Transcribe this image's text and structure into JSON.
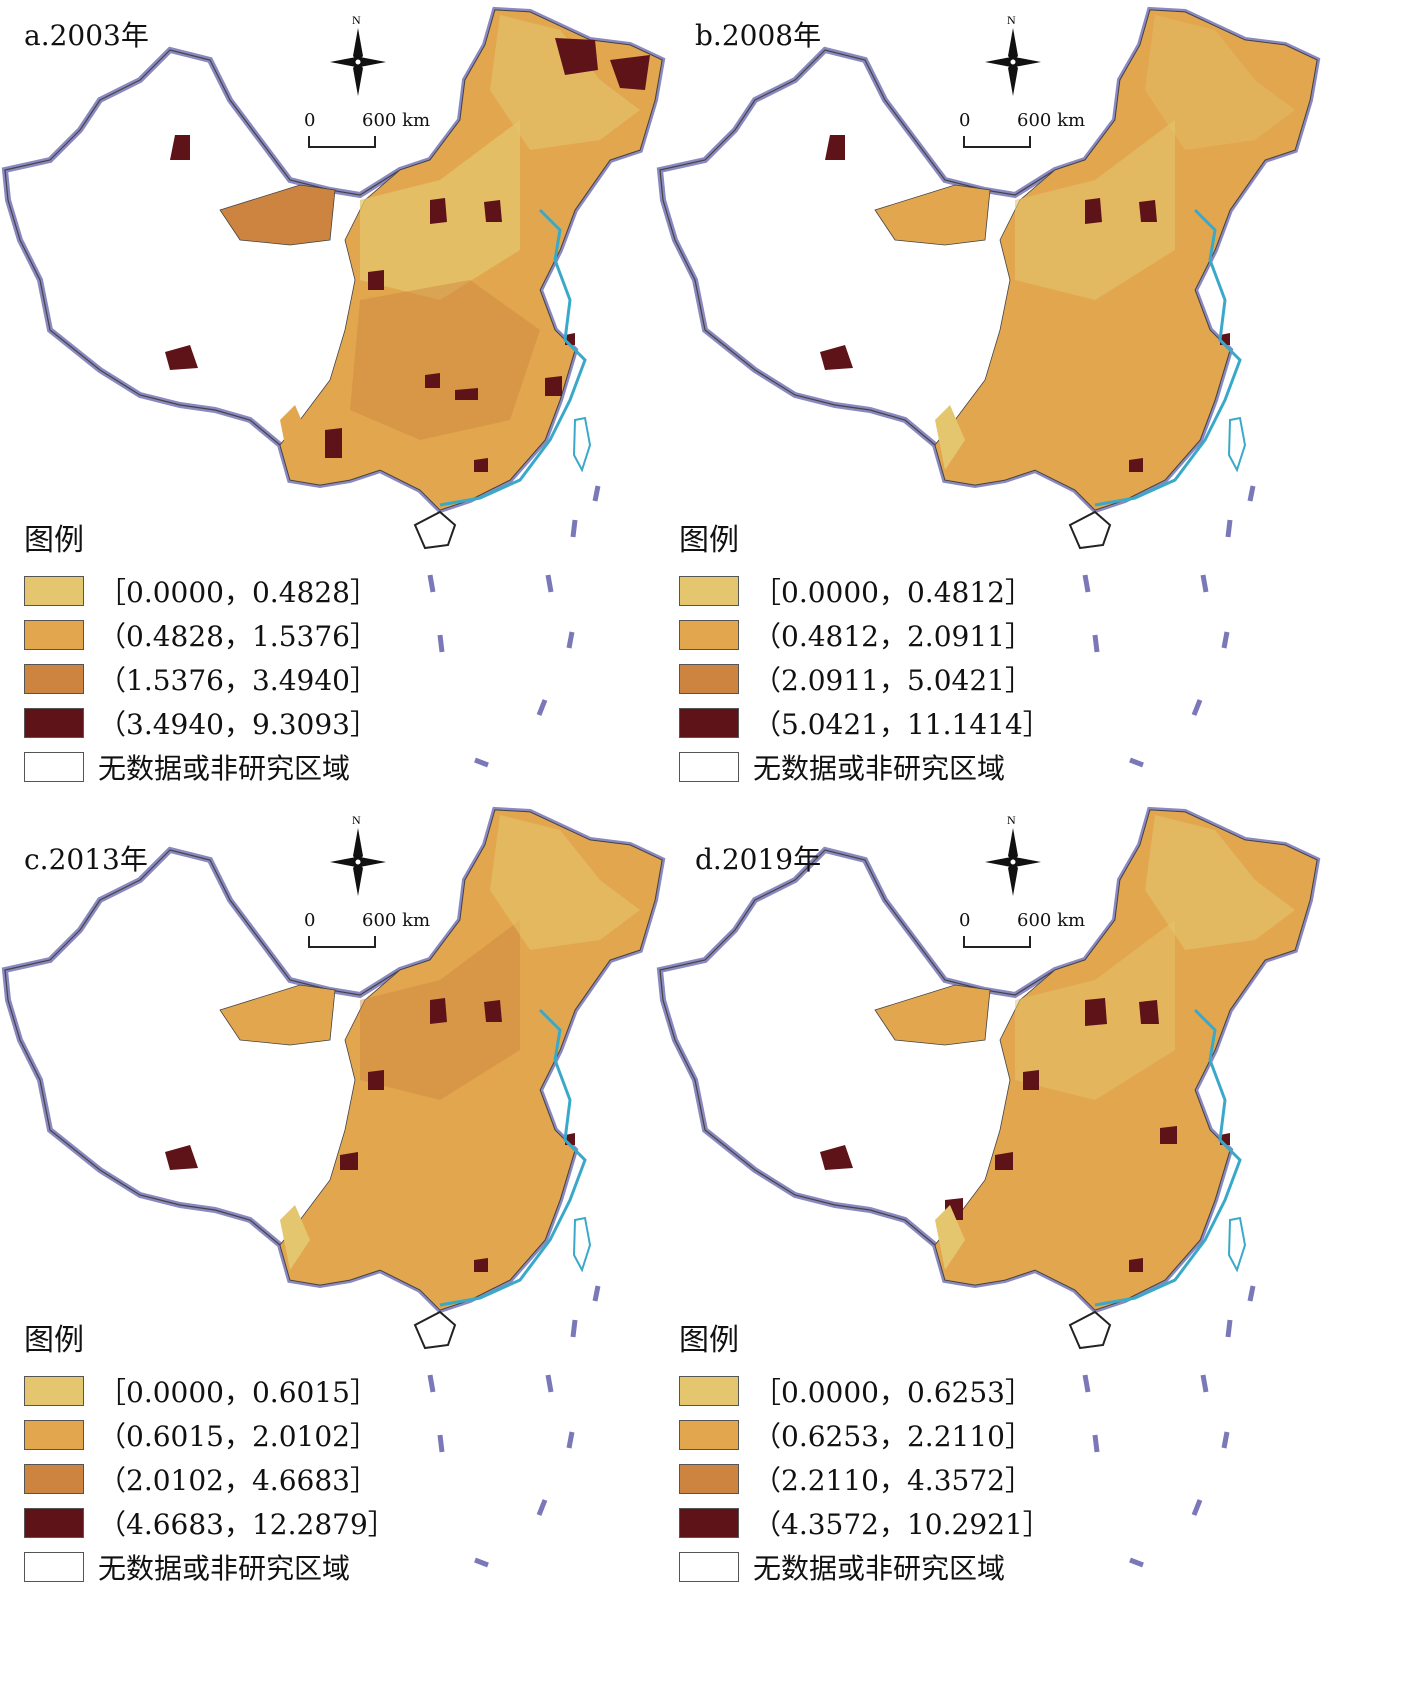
{
  "panels": [
    {
      "title": "a.2003年",
      "scale": {
        "zero": "0",
        "distance": "600 km"
      },
      "north": "N",
      "legend": {
        "title": "图例",
        "items": [
          {
            "label": "［0.0000，0.4828］",
            "color": "#e3c66e"
          },
          {
            "label": "（0.4828，1.5376］",
            "color": "#e2a64e"
          },
          {
            "label": "（1.5376，3.4940］",
            "color": "#cc8440"
          },
          {
            "label": "（3.4940，9.3093］",
            "color": "#5e1319"
          },
          {
            "label": "无数据或非研究区域",
            "color": "#ffffff"
          }
        ]
      }
    },
    {
      "title": "b.2008年",
      "scale": {
        "zero": "0",
        "distance": "600 km"
      },
      "north": "N",
      "legend": {
        "title": "图例",
        "items": [
          {
            "label": "［0.0000，0.4812］",
            "color": "#e3c66e"
          },
          {
            "label": "（0.4812，2.0911］",
            "color": "#e2a64e"
          },
          {
            "label": "（2.0911，5.0421］",
            "color": "#cc8440"
          },
          {
            "label": "（5.0421，11.1414］",
            "color": "#5e1319"
          },
          {
            "label": "无数据或非研究区域",
            "color": "#ffffff"
          }
        ]
      }
    },
    {
      "title": "c.2013年",
      "scale": {
        "zero": "0",
        "distance": "600 km"
      },
      "north": "N",
      "legend": {
        "title": "图例",
        "items": [
          {
            "label": "［0.0000，0.6015］",
            "color": "#e3c66e"
          },
          {
            "label": "（0.6015，2.0102］",
            "color": "#e2a64e"
          },
          {
            "label": "（2.0102，4.6683］",
            "color": "#cc8440"
          },
          {
            "label": "（4.6683，12.2879］",
            "color": "#5e1319"
          },
          {
            "label": "无数据或非研究区域",
            "color": "#ffffff"
          }
        ]
      }
    },
    {
      "title": "d.2019年",
      "scale": {
        "zero": "0",
        "distance": "600 km"
      },
      "north": "N",
      "legend": {
        "title": "图例",
        "items": [
          {
            "label": "［0.0000，0.6253］",
            "color": "#e3c66e"
          },
          {
            "label": "（0.6253，2.2110］",
            "color": "#e2a64e"
          },
          {
            "label": "（2.2110，4.3572］",
            "color": "#cc8440"
          },
          {
            "label": "（4.3572，10.2921］",
            "color": "#5e1319"
          },
          {
            "label": "无数据或非研究区域",
            "color": "#ffffff"
          }
        ]
      }
    }
  ]
}
